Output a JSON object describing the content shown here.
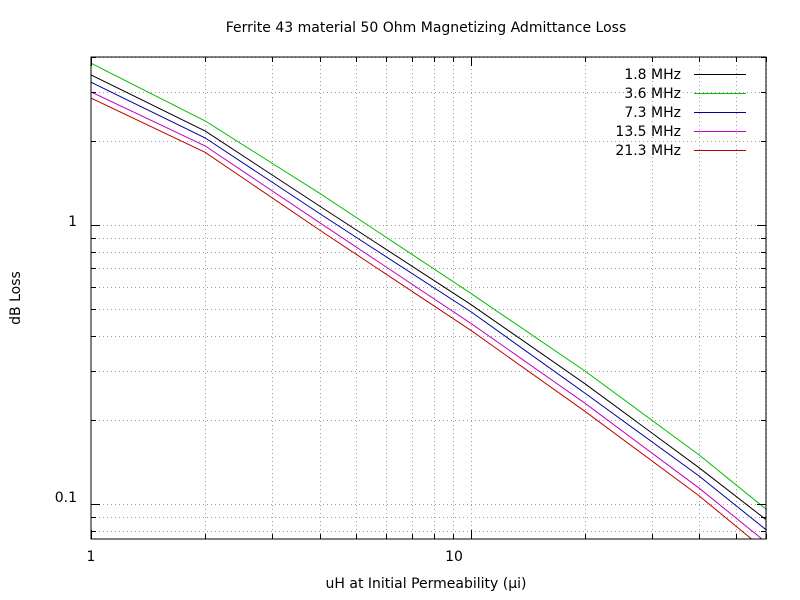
{
  "chart_data": {
    "type": "line",
    "title": "Ferrite 43 material 50 Ohm Magnetizing Admittance  Loss",
    "xlabel": "uH at Initial Permeability (µi)",
    "ylabel": "dB Loss",
    "xscale": "log",
    "yscale": "log",
    "xlim": [
      1,
      60
    ],
    "ylim": [
      0.075,
      4
    ],
    "x_tick_labels": [
      "1",
      "10"
    ],
    "y_tick_labels": [
      "0.1",
      "1"
    ],
    "grid": true,
    "legend_position": "top-right",
    "x": [
      1,
      2,
      4,
      10,
      20,
      40,
      60
    ],
    "series": [
      {
        "name": "1.8 MHz",
        "color": "#000000",
        "values": [
          3.45,
          2.17,
          1.17,
          0.52,
          0.27,
          0.135,
          0.088
        ]
      },
      {
        "name": "3.6 MHz",
        "color": "#00c000",
        "values": [
          3.8,
          2.36,
          1.3,
          0.57,
          0.3,
          0.15,
          0.096
        ]
      },
      {
        "name": "7.3 MHz",
        "color": "#0000a0",
        "values": [
          3.25,
          2.05,
          1.1,
          0.49,
          0.25,
          0.126,
          0.081
        ]
      },
      {
        "name": "13.5 MHz",
        "color": "#c000c0",
        "values": [
          3.0,
          1.92,
          1.02,
          0.445,
          0.23,
          0.114,
          0.073
        ]
      },
      {
        "name": "21.3 MHz",
        "color": "#c00000",
        "values": [
          2.85,
          1.82,
          0.96,
          0.42,
          0.215,
          0.107,
          0.068
        ]
      }
    ]
  }
}
